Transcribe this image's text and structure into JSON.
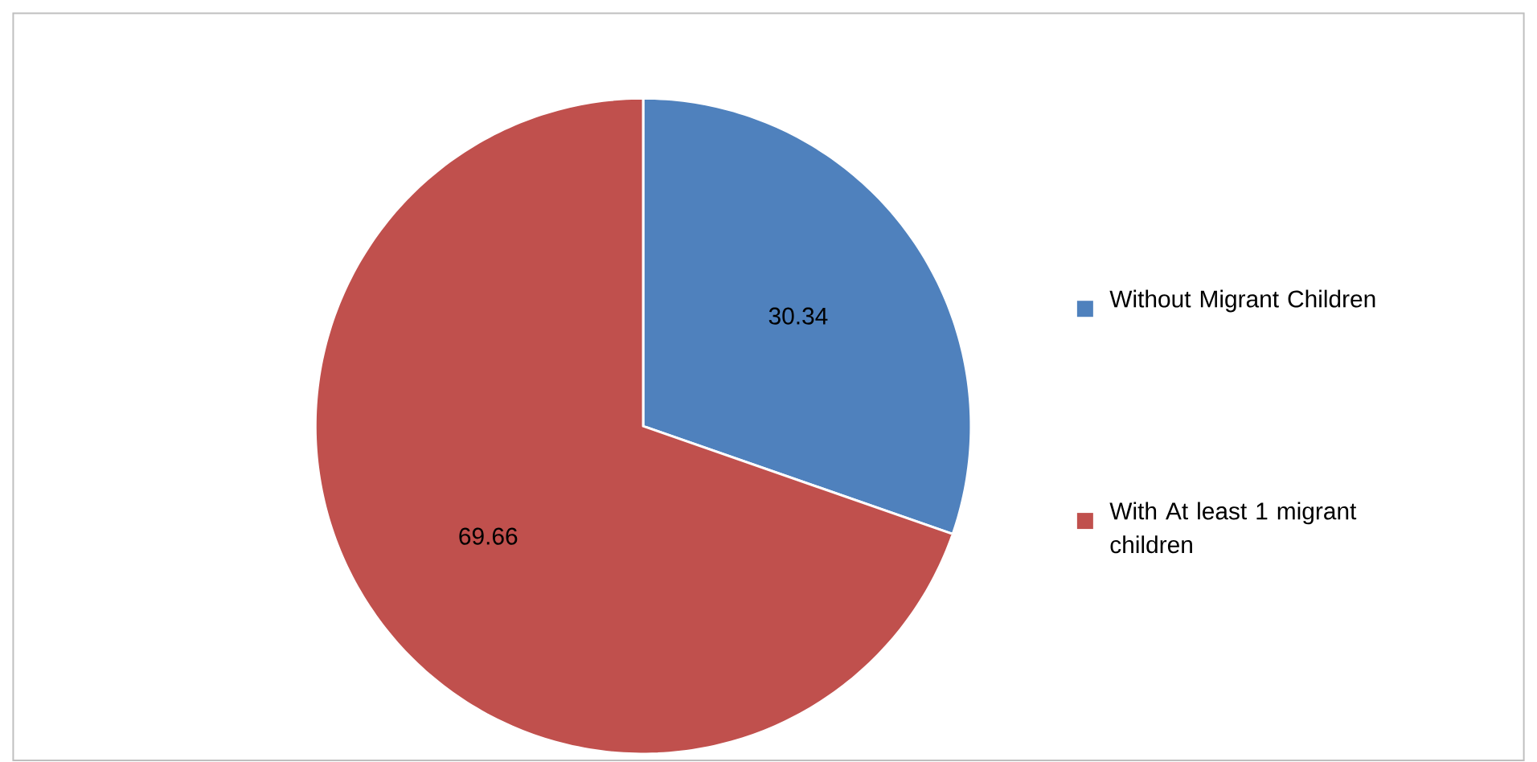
{
  "chart_data": {
    "type": "pie",
    "categories": [
      "Without Migrant Children",
      "With At least 1 migrant children"
    ],
    "values": [
      30.34,
      69.66
    ],
    "colors": [
      "#4f81bd",
      "#c0504d"
    ],
    "data_labels": true,
    "legend": "right"
  }
}
